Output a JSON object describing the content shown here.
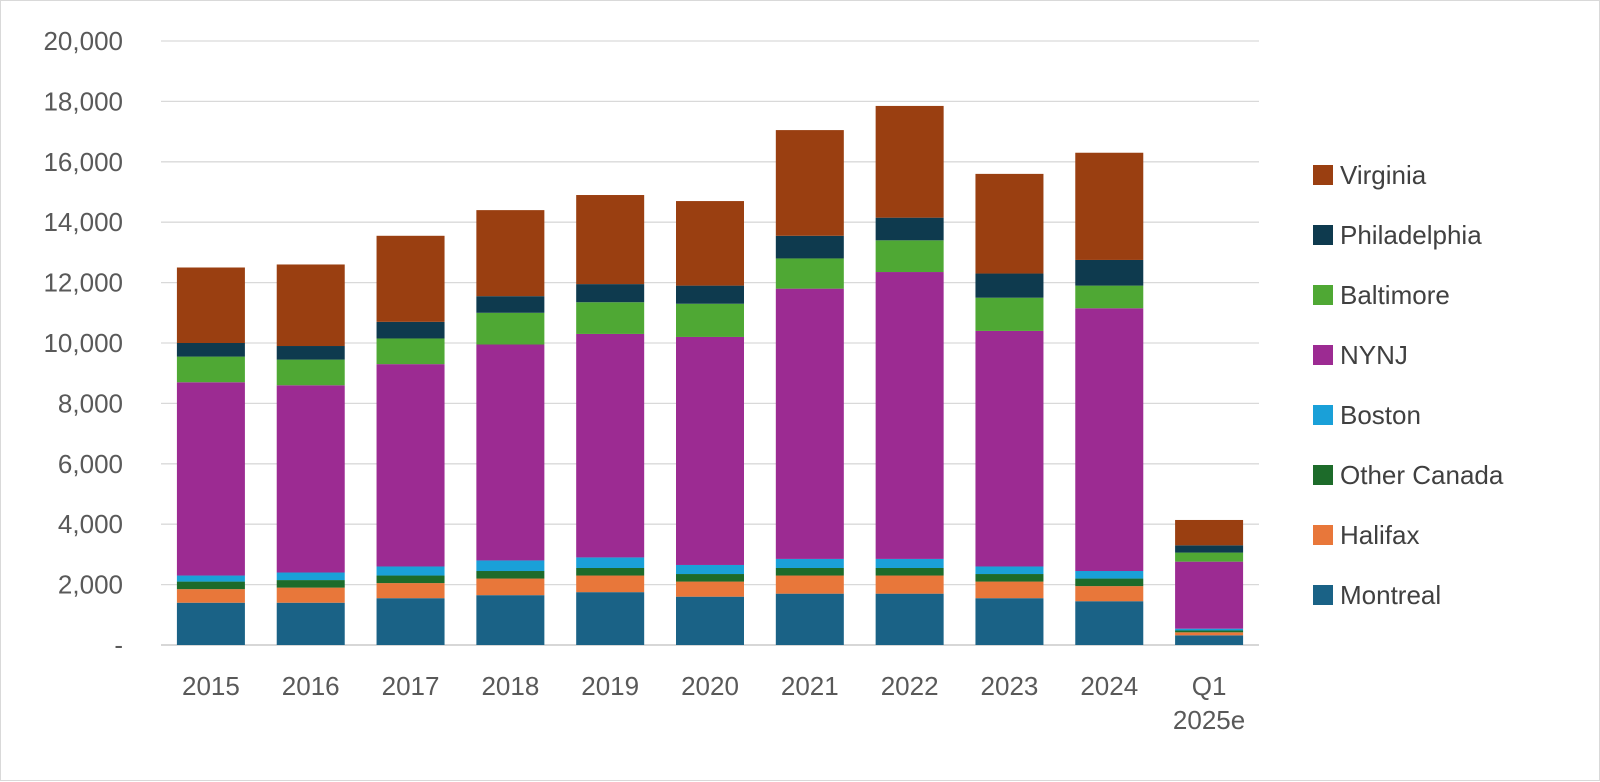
{
  "chart_data": {
    "type": "bar",
    "stacked": true,
    "title": "",
    "xlabel": "",
    "ylabel": "",
    "ylim": [
      0,
      20000
    ],
    "y_ticks": [
      0,
      2000,
      4000,
      6000,
      8000,
      10000,
      12000,
      14000,
      16000,
      18000,
      20000
    ],
    "y_tick_labels": [
      "-",
      "2,000",
      "4,000",
      "6,000",
      "8,000",
      "10,000",
      "12,000",
      "14,000",
      "16,000",
      "18,000",
      "20,000"
    ],
    "grid": true,
    "legend_position": "right",
    "categories": [
      "2015",
      "2016",
      "2017",
      "2018",
      "2019",
      "2020",
      "2021",
      "2022",
      "2023",
      "2024",
      "Q1 2025e"
    ],
    "series": [
      {
        "name": "Montreal",
        "color": "#1a6286",
        "values": [
          1400,
          1400,
          1550,
          1650,
          1750,
          1600,
          1700,
          1700,
          1550,
          1450,
          320
        ]
      },
      {
        "name": "Halifax",
        "color": "#e8773a",
        "values": [
          450,
          500,
          500,
          550,
          550,
          500,
          600,
          600,
          550,
          500,
          100
        ]
      },
      {
        "name": "Other Canada",
        "color": "#1d6b2a",
        "values": [
          250,
          250,
          250,
          250,
          250,
          250,
          250,
          250,
          250,
          250,
          60
        ]
      },
      {
        "name": "Boston",
        "color": "#1aa0d8",
        "values": [
          200,
          250,
          300,
          350,
          350,
          300,
          300,
          300,
          250,
          250,
          60
        ]
      },
      {
        "name": "NYNJ",
        "color": "#9c2b92",
        "values": [
          6400,
          6200,
          6700,
          7150,
          7400,
          7550,
          8950,
          9500,
          7800,
          8700,
          2220
        ]
      },
      {
        "name": "Baltimore",
        "color": "#4fa834",
        "values": [
          850,
          850,
          850,
          1050,
          1050,
          1100,
          1000,
          1050,
          1100,
          750,
          300
        ]
      },
      {
        "name": "Philadelphia",
        "color": "#0e3a4e",
        "values": [
          450,
          450,
          550,
          550,
          600,
          600,
          750,
          750,
          800,
          850,
          240
        ]
      },
      {
        "name": "Virginia",
        "color": "#9a3f11",
        "values": [
          2500,
          2700,
          2850,
          2850,
          2950,
          2800,
          3500,
          3700,
          3300,
          3550,
          840
        ]
      }
    ],
    "legend_order": [
      "Virginia",
      "Philadelphia",
      "Baltimore",
      "NYNJ",
      "Boston",
      "Other Canada",
      "Halifax",
      "Montreal"
    ]
  }
}
